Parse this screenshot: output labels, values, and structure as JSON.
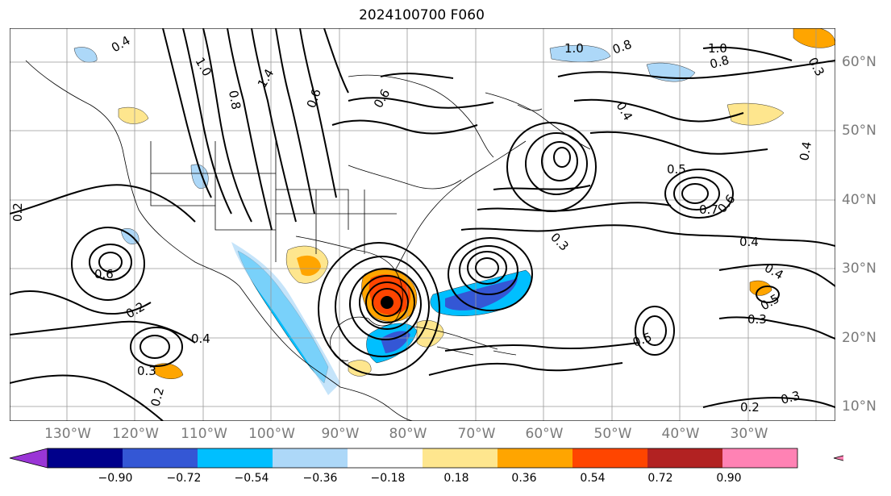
{
  "title": "2024100700 F060",
  "lon_labels": [
    "130°W",
    "120°W",
    "110°W",
    "100°W",
    "90°W",
    "80°W",
    "70°W",
    "60°W",
    "50°W",
    "40°W",
    "30°W"
  ],
  "lat_labels": [
    "60°N",
    "50°N",
    "40°N",
    "30°N",
    "20°N",
    "10°N"
  ],
  "colorbar": {
    "ticks": [
      "−0.90",
      "−0.72",
      "−0.54",
      "−0.36",
      "−0.18",
      "0.18",
      "0.36",
      "0.54",
      "0.72",
      "0.90"
    ],
    "colors": [
      "#9a35d6",
      "#00008b",
      "#3457d5",
      "#00bfff",
      "#add8f8",
      "#ffffff",
      "#fee68e",
      "#ffa500",
      "#ff4500",
      "#b22222",
      "#ff82b4"
    ]
  },
  "contour_labels": [
    "0.4",
    "1.0",
    "0.8",
    "1.4",
    "0.6",
    "1.0",
    "0.8",
    "1.0",
    "0.8",
    "0.6",
    "0.4",
    "0.3",
    "0.4",
    "0.5",
    "0.7",
    "0.6",
    "0.4",
    "0.3",
    "0.6",
    "0.2",
    "0.4",
    "0.3",
    "0.2",
    "0.5",
    "0.4",
    "0.3",
    "0.2",
    "0.3",
    "0.5",
    "0.2"
  ],
  "colors": {
    "contour": "#000000",
    "grid": "#999999",
    "coast": "#000000",
    "axis_label": "#7a7a7a"
  }
}
